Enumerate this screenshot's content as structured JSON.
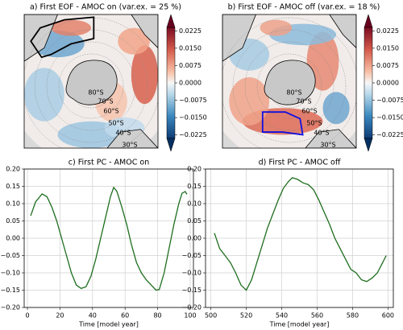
{
  "chart_data": [
    {
      "type": "map",
      "title": "a) First EOF - AMOC on (var.ex. = 25 %)",
      "lat_labels": [
        "80°S",
        "70°S",
        "60°S",
        "50°S",
        "40°S",
        "30°S"
      ],
      "colormap": "RdBu_r",
      "clim": [
        -0.024,
        0.024
      ],
      "cticks": [
        0.0225,
        {
          "value": 0.015,
          "label": "0.0150"
        },
        0.0075,
        {
          "value": 0,
          "label": "0.0000"
        },
        {
          "value": -0.0075,
          "label": "−0.0075"
        },
        {
          "value": -0.015,
          "label": "−0.0150"
        },
        {
          "value": -0.0225,
          "label": "−0.0225"
        }
      ],
      "box_color": "#000000"
    },
    {
      "type": "map",
      "title": "b) First EOF - AMOC off (var.ex. = 18 %)",
      "lat_labels": [
        "80°S",
        "70°S",
        "60°S",
        "50°S",
        "40°S",
        "30°S"
      ],
      "colormap": "RdBu_r",
      "clim": [
        -0.024,
        0.024
      ],
      "cticks": [
        0.0225,
        {
          "value": 0.015,
          "label": "0.0150"
        },
        0.0075,
        {
          "value": 0,
          "label": "0.0000"
        },
        {
          "value": -0.0075,
          "label": "−0.0075"
        },
        {
          "value": -0.015,
          "label": "−0.0150"
        },
        {
          "value": -0.0225,
          "label": "−0.0225"
        }
      ],
      "box_color": "#1010e0"
    },
    {
      "type": "line",
      "title": "c) First PC - AMOC on",
      "xlabel": "Time [model year]",
      "x": [
        2,
        5,
        9,
        12,
        15,
        18,
        21,
        24,
        27,
        30,
        33,
        36,
        39,
        42,
        45,
        48,
        51,
        53,
        55,
        58,
        61,
        64,
        67,
        70,
        73,
        76,
        79,
        81,
        84,
        87,
        90,
        93,
        95,
        97,
        98
      ],
      "values": [
        0.065,
        0.105,
        0.128,
        0.12,
        0.09,
        0.05,
        0.0,
        -0.05,
        -0.1,
        -0.135,
        -0.145,
        -0.14,
        -0.11,
        -0.06,
        0.0,
        0.06,
        0.12,
        0.147,
        0.135,
        0.09,
        0.04,
        -0.02,
        -0.07,
        -0.1,
        -0.12,
        -0.135,
        -0.15,
        -0.148,
        -0.1,
        -0.03,
        0.04,
        0.1,
        0.13,
        0.135,
        0.127
      ],
      "color": "#1e6e1e",
      "grid": true,
      "xlim": [
        -2,
        102
      ],
      "xticks": [
        0,
        20,
        40,
        60,
        80,
        100
      ],
      "ylim": [
        -0.2,
        0.2
      ],
      "yticks": [
        {
          "value": -0.2,
          "label": "−0.20"
        },
        {
          "value": -0.15,
          "label": "−0.15"
        },
        {
          "value": -0.1,
          "label": "−0.10"
        },
        {
          "value": -0.05,
          "label": "−0.05"
        },
        {
          "value": 0,
          "label": "0.00"
        },
        0.05,
        {
          "value": 0.1,
          "label": "0.10"
        },
        0.15,
        {
          "value": 0.2,
          "label": "0.20"
        }
      ]
    },
    {
      "type": "line",
      "title": "d) First PC - AMOC off",
      "xlabel": "Time [model year]",
      "x": [
        502,
        505,
        508,
        511,
        514,
        517,
        520,
        523,
        526,
        529,
        532,
        535,
        538,
        541,
        544,
        546,
        549,
        552,
        555,
        558,
        561,
        564,
        567,
        570,
        573,
        576,
        579,
        582,
        585,
        588,
        591,
        594,
        597,
        599
      ],
      "values": [
        0.015,
        -0.03,
        -0.05,
        -0.07,
        -0.1,
        -0.135,
        -0.15,
        -0.12,
        -0.07,
        -0.02,
        0.03,
        0.07,
        0.11,
        0.145,
        0.165,
        0.175,
        0.17,
        0.16,
        0.155,
        0.14,
        0.11,
        0.075,
        0.04,
        0.0,
        -0.03,
        -0.06,
        -0.09,
        -0.1,
        -0.12,
        -0.125,
        -0.115,
        -0.1,
        -0.07,
        -0.05
      ],
      "color": "#1e6e1e",
      "grid": true,
      "xlim": [
        497,
        603
      ],
      "xticks": [
        500,
        520,
        540,
        560,
        580,
        600
      ],
      "ylim": [
        -0.2,
        0.2
      ],
      "yticks": [
        {
          "value": -0.2,
          "label": "−0.20"
        },
        {
          "value": -0.15,
          "label": "−0.15"
        },
        {
          "value": -0.1,
          "label": "−0.10"
        },
        {
          "value": -0.05,
          "label": "−0.05"
        },
        {
          "value": 0,
          "label": "0.00"
        },
        0.05,
        {
          "value": 0.1,
          "label": "0.10"
        },
        0.15,
        {
          "value": 0.2,
          "label": "0.20"
        }
      ]
    }
  ]
}
